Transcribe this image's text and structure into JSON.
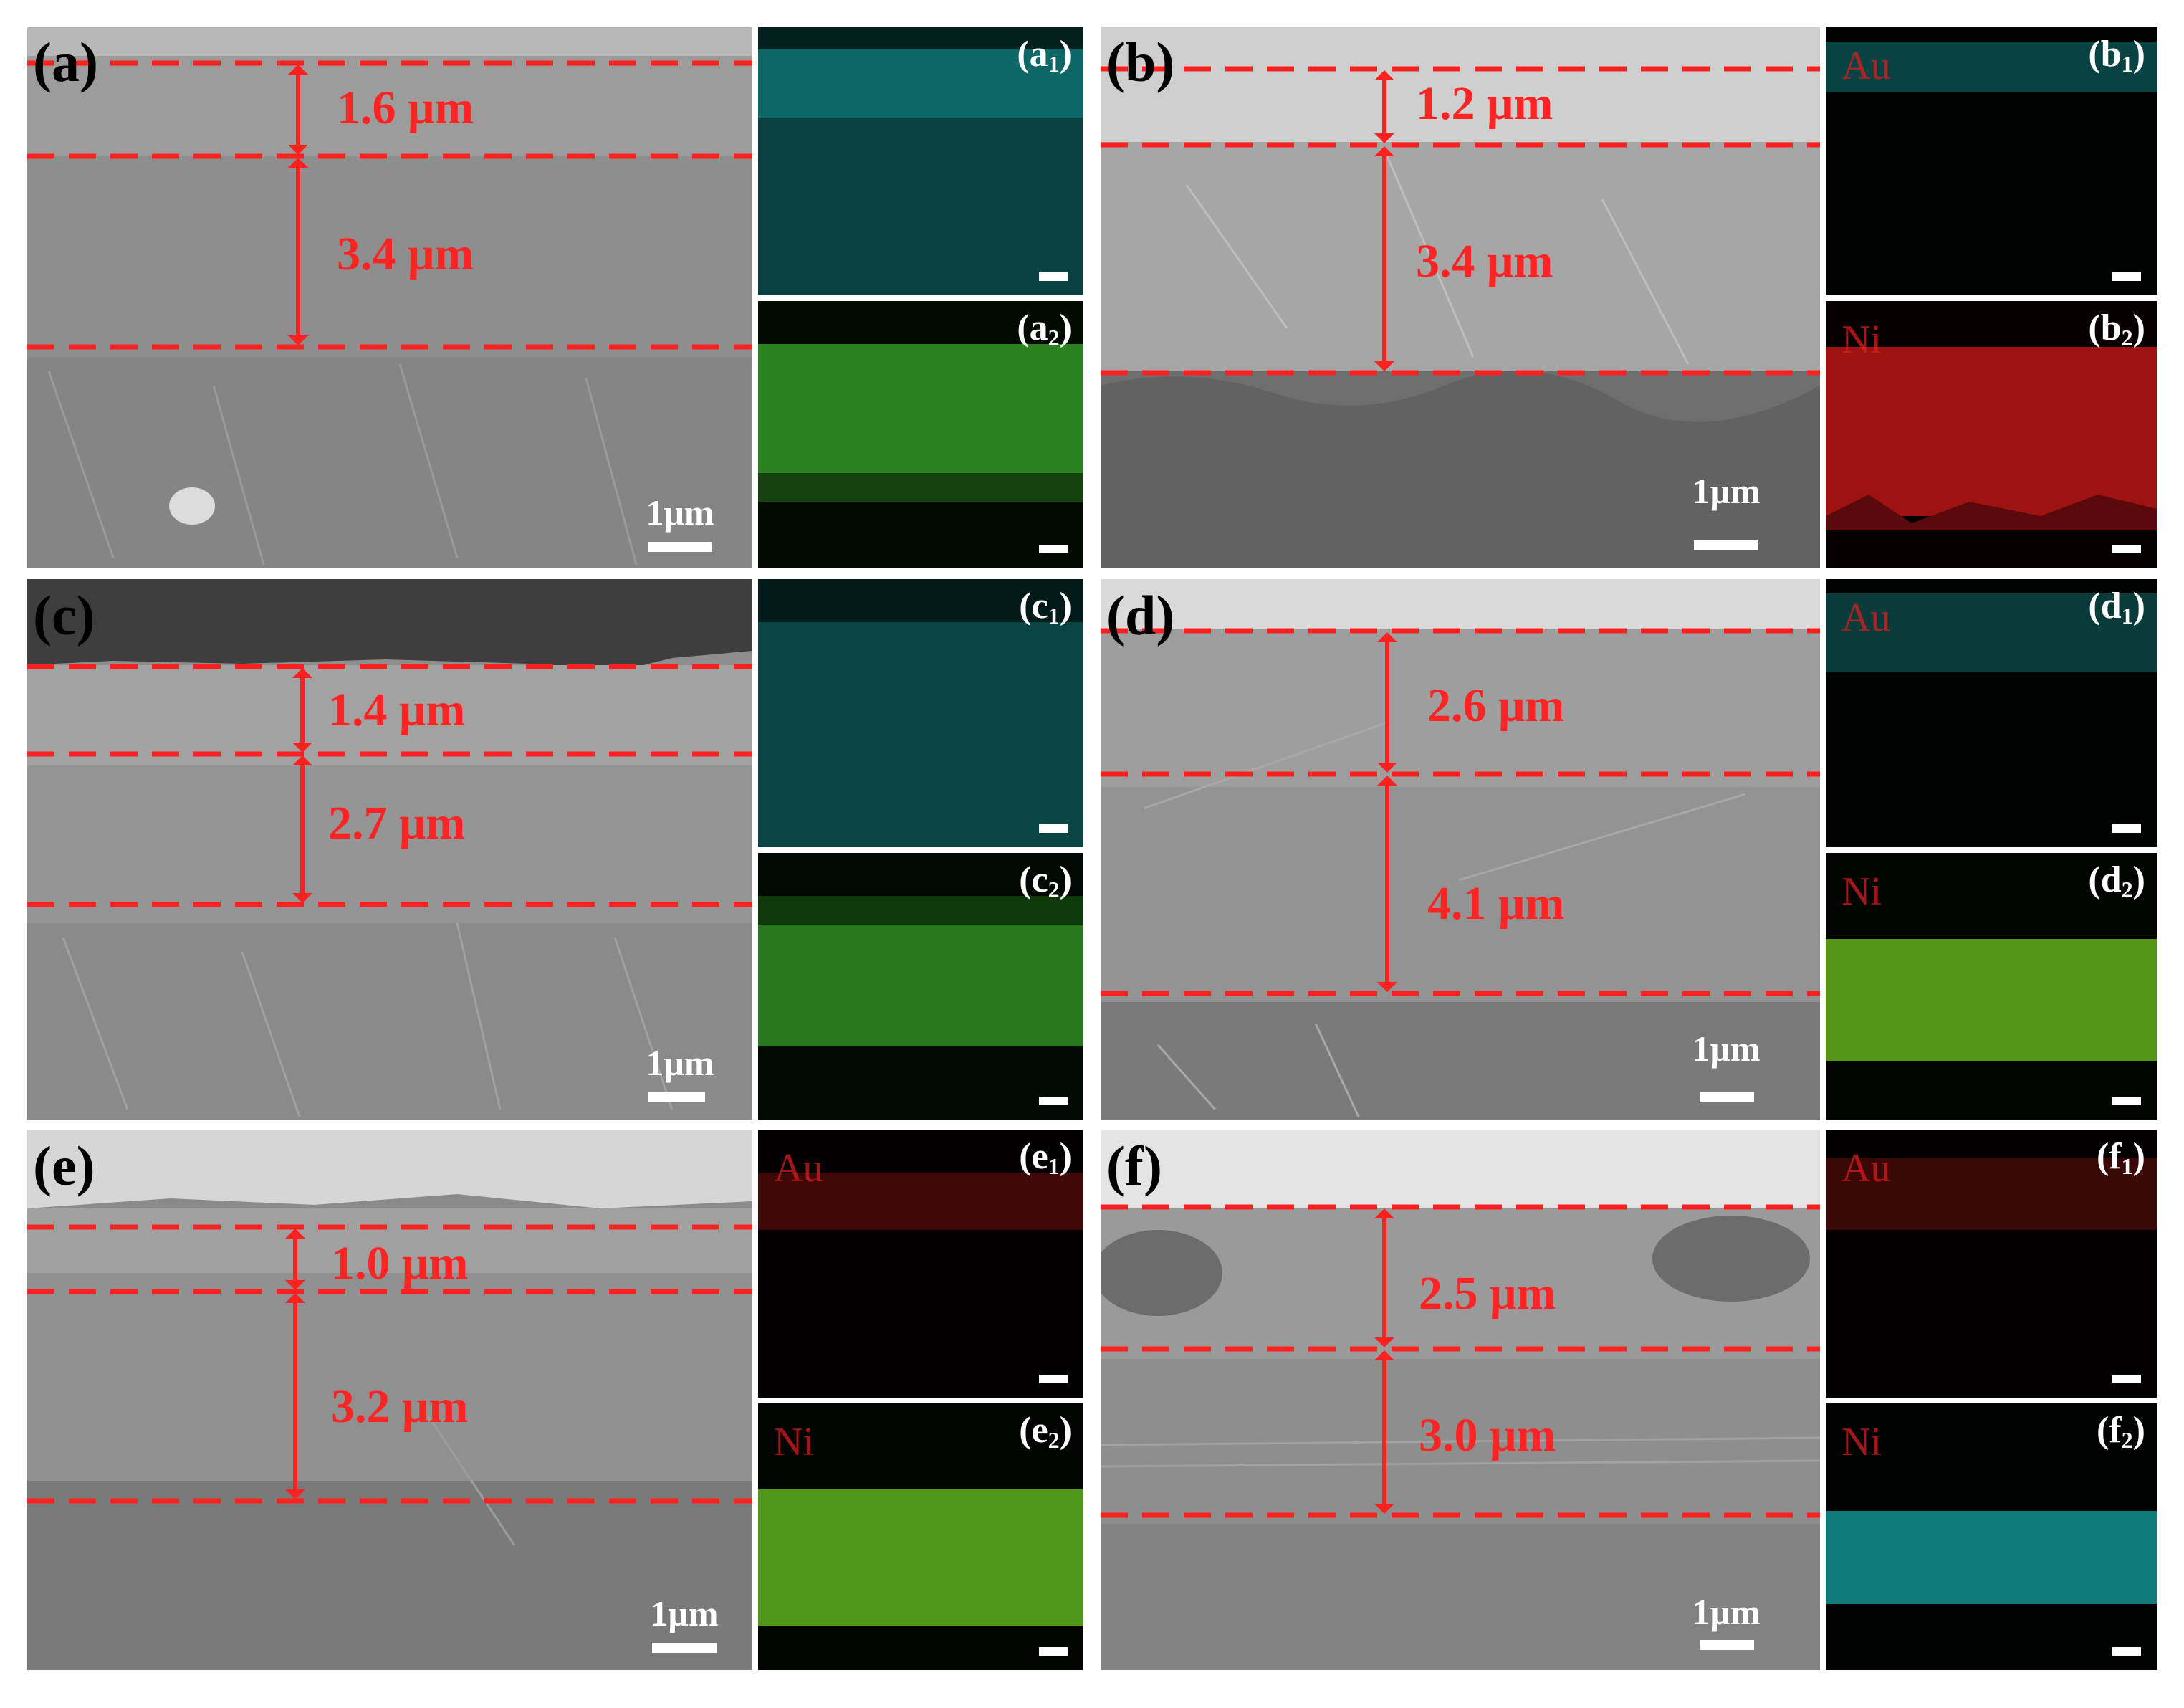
{
  "figure": {
    "panels": [
      {
        "label": "(a)",
        "scale_bar": "1μm",
        "thickness": [
          "1.6 μm",
          "3.4 μm"
        ],
        "maps": [
          {
            "label_main": "(a",
            "label_sub": "1",
            "label_close": ")",
            "element": "",
            "color": "#1aa8a8",
            "band": "top"
          },
          {
            "label_main": "(a",
            "label_sub": "2",
            "label_close": ")",
            "element": "",
            "color": "#3cbe2c",
            "band": "middle"
          }
        ]
      },
      {
        "label": "(b)",
        "scale_bar": "1μm",
        "thickness": [
          "1.2 μm",
          "3.4 μm"
        ],
        "maps": [
          {
            "label_main": "(b",
            "label_sub": "1",
            "label_close": ")",
            "element": "Au",
            "color": "#1aa8a8",
            "band": "top"
          },
          {
            "label_main": "(b",
            "label_sub": "2",
            "label_close": ")",
            "element": "Ni",
            "color": "#d01e1e",
            "band": "middle"
          }
        ]
      },
      {
        "label": "(c)",
        "scale_bar": "1μm",
        "thickness": [
          "1.4 μm",
          "2.7 μm"
        ],
        "maps": [
          {
            "label_main": "(c",
            "label_sub": "1",
            "label_close": ")",
            "element": "",
            "color": "#1aa8a8",
            "band": "top"
          },
          {
            "label_main": "(c",
            "label_sub": "2",
            "label_close": ")",
            "element": "",
            "color": "#3cbe2c",
            "band": "middle"
          }
        ]
      },
      {
        "label": "(d)",
        "scale_bar": "1μm",
        "thickness": [
          "2.6 μm",
          "4.1 μm"
        ],
        "maps": [
          {
            "label_main": "(d",
            "label_sub": "1",
            "label_close": ")",
            "element": "Au",
            "color": "#1aa8a8",
            "band": "top"
          },
          {
            "label_main": "(d",
            "label_sub": "2",
            "label_close": ")",
            "element": "Ni",
            "color": "#64c01e",
            "band": "middle"
          }
        ]
      },
      {
        "label": "(e)",
        "scale_bar": "1μm",
        "thickness": [
          "1.0 μm",
          "3.2 μm"
        ],
        "maps": [
          {
            "label_main": "(e",
            "label_sub": "1",
            "label_close": ")",
            "element": "Au",
            "color": "#a01818",
            "band": "top"
          },
          {
            "label_main": "(e",
            "label_sub": "2",
            "label_close": ")",
            "element": "Ni",
            "color": "#5cba1e",
            "band": "middle"
          }
        ]
      },
      {
        "label": "(f)",
        "scale_bar": "1μm",
        "thickness": [
          "2.5 μm",
          "3.0 μm"
        ],
        "maps": [
          {
            "label_main": "(f",
            "label_sub": "1",
            "label_close": ")",
            "element": "Au",
            "color": "#a01818",
            "band": "top"
          },
          {
            "label_main": "(f",
            "label_sub": "2",
            "label_close": ")",
            "element": "Ni",
            "color": "#1aa8a8",
            "band": "middle"
          }
        ]
      }
    ]
  }
}
